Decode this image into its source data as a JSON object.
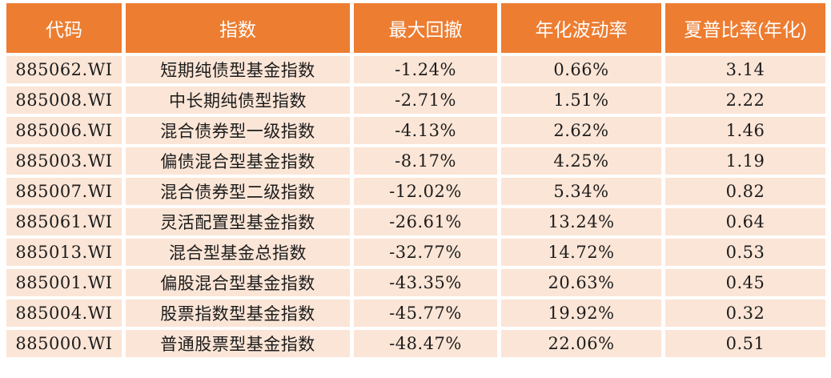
{
  "colors": {
    "header_bg": "#ED7D31",
    "row_bg": "#FBE5D6",
    "header_text": "#FFFFFF",
    "body_text": "#1C1C1C",
    "grid": "#FFFFFF"
  },
  "table": {
    "headers": [
      {
        "key": "code",
        "label": "代码"
      },
      {
        "key": "index_name",
        "label": "指数"
      },
      {
        "key": "max_drawdown",
        "label": "最大回撤"
      },
      {
        "key": "annual_volatility",
        "label": "年化波动率"
      },
      {
        "key": "sharpe_ratio",
        "label": "夏普比率(年化)"
      }
    ],
    "rows": [
      {
        "code": "885062.WI",
        "index_name": "短期纯债型基金指数",
        "max_drawdown": "-1.24%",
        "annual_volatility": "0.66%",
        "sharpe_ratio": "3.14"
      },
      {
        "code": "885008.WI",
        "index_name": "中长期纯债型指数",
        "max_drawdown": "-2.71%",
        "annual_volatility": "1.51%",
        "sharpe_ratio": "2.22"
      },
      {
        "code": "885006.WI",
        "index_name": "混合债券型一级指数",
        "max_drawdown": "-4.13%",
        "annual_volatility": "2.62%",
        "sharpe_ratio": "1.46"
      },
      {
        "code": "885003.WI",
        "index_name": "偏债混合型基金指数",
        "max_drawdown": "-8.17%",
        "annual_volatility": "4.25%",
        "sharpe_ratio": "1.19"
      },
      {
        "code": "885007.WI",
        "index_name": "混合债券型二级指数",
        "max_drawdown": "-12.02%",
        "annual_volatility": "5.34%",
        "sharpe_ratio": "0.82"
      },
      {
        "code": "885061.WI",
        "index_name": "灵活配置型基金指数",
        "max_drawdown": "-26.61%",
        "annual_volatility": "13.24%",
        "sharpe_ratio": "0.64"
      },
      {
        "code": "885013.WI",
        "index_name": "混合型基金总指数",
        "max_drawdown": "-32.77%",
        "annual_volatility": "14.72%",
        "sharpe_ratio": "0.53"
      },
      {
        "code": "885001.WI",
        "index_name": "偏股混合型基金指数",
        "max_drawdown": "-43.35%",
        "annual_volatility": "20.63%",
        "sharpe_ratio": "0.45"
      },
      {
        "code": "885004.WI",
        "index_name": "股票指数型基金指数",
        "max_drawdown": "-45.77%",
        "annual_volatility": "19.92%",
        "sharpe_ratio": "0.32"
      },
      {
        "code": "885000.WI",
        "index_name": "普通股票型基金指数",
        "max_drawdown": "-48.47%",
        "annual_volatility": "22.06%",
        "sharpe_ratio": "0.51"
      }
    ]
  },
  "chart_data": {
    "type": "table",
    "columns": [
      "代码",
      "指数",
      "最大回撤",
      "年化波动率",
      "夏普比率(年化)"
    ],
    "rows": [
      [
        "885062.WI",
        "短期纯债型基金指数",
        "-1.24%",
        "0.66%",
        "3.14"
      ],
      [
        "885008.WI",
        "中长期纯债型指数",
        "-2.71%",
        "1.51%",
        "2.22"
      ],
      [
        "885006.WI",
        "混合债券型一级指数",
        "-4.13%",
        "2.62%",
        "1.46"
      ],
      [
        "885003.WI",
        "偏债混合型基金指数",
        "-8.17%",
        "4.25%",
        "1.19"
      ],
      [
        "885007.WI",
        "混合债券型二级指数",
        "-12.02%",
        "5.34%",
        "0.82"
      ],
      [
        "885061.WI",
        "灵活配置型基金指数",
        "-26.61%",
        "13.24%",
        "0.64"
      ],
      [
        "885013.WI",
        "混合型基金总指数",
        "-32.77%",
        "14.72%",
        "0.53"
      ],
      [
        "885001.WI",
        "偏股混合型基金指数",
        "-43.35%",
        "20.63%",
        "0.45"
      ],
      [
        "885004.WI",
        "股票指数型基金指数",
        "-45.77%",
        "19.92%",
        "0.32"
      ],
      [
        "885000.WI",
        "普通股票型基金指数",
        "-48.47%",
        "22.06%",
        "0.51"
      ]
    ],
    "max_drawdown_values_pct": [
      -1.24,
      -2.71,
      -4.13,
      -8.17,
      -12.02,
      -26.61,
      -32.77,
      -43.35,
      -45.77,
      -48.47
    ],
    "annual_volatility_values_pct": [
      0.66,
      1.51,
      2.62,
      4.25,
      5.34,
      13.24,
      14.72,
      20.63,
      19.92,
      22.06
    ],
    "sharpe_ratio_values": [
      3.14,
      2.22,
      1.46,
      1.19,
      0.82,
      0.64,
      0.53,
      0.45,
      0.32,
      0.51
    ]
  }
}
